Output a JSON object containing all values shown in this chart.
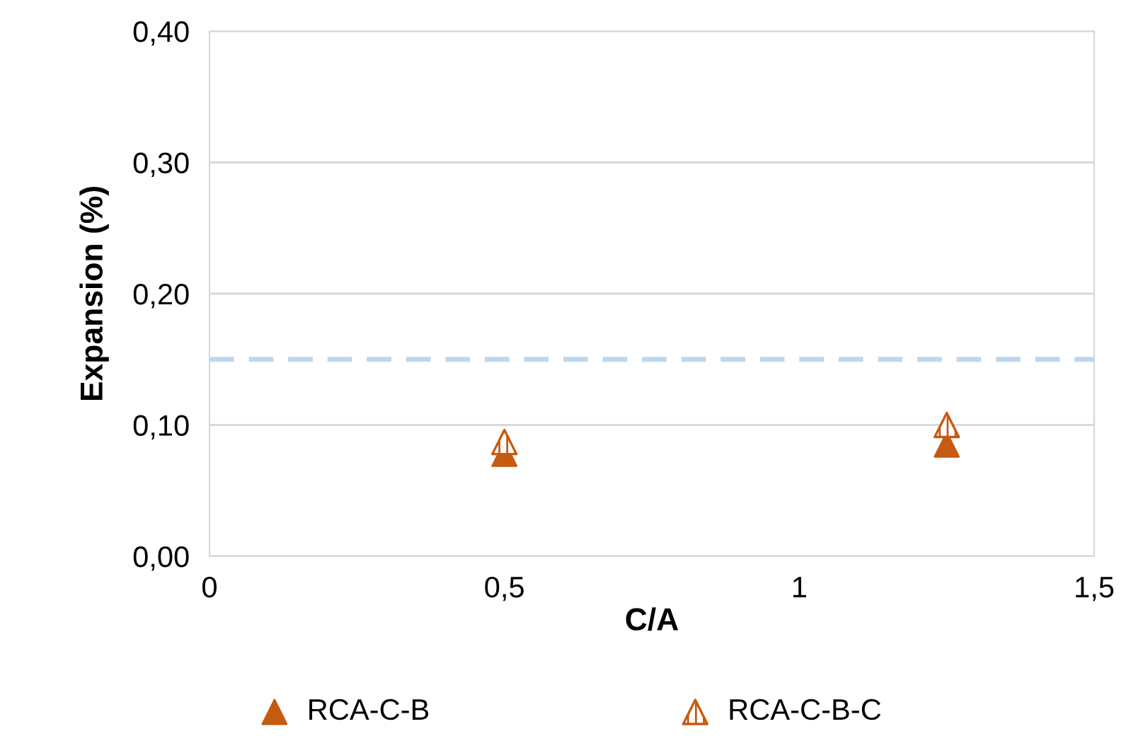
{
  "chart_data": {
    "type": "scatter",
    "xlabel": "C/A",
    "ylabel": "Expansion (%)",
    "x": [
      0.5,
      1.25
    ],
    "xlim": [
      0,
      1.5
    ],
    "xticks": [
      0,
      {
        "value": 0.5,
        "label": "0,5"
      },
      1,
      {
        "value": 1.5,
        "label": "1,5"
      }
    ],
    "ylim": [
      0,
      0.4
    ],
    "yticks": [
      {
        "value": 0,
        "label": "0,00"
      },
      {
        "value": 0.1,
        "label": "0,10"
      },
      {
        "value": 0.2,
        "label": "0,20"
      },
      {
        "value": 0.3,
        "label": "0,30"
      },
      {
        "value": 0.4,
        "label": "0,40"
      }
    ],
    "grid": "y",
    "legend": "bottom",
    "marker": "triangle",
    "ref_lines": [
      {
        "axis": "y",
        "value": 0.15,
        "color": "#bdd7ee",
        "line_style": "dashed"
      }
    ],
    "series": [
      {
        "name": "RCA-C-B",
        "color": "#c55a11",
        "values": [
          0.078,
          0.085
        ]
      },
      {
        "name": "RCA-C-B-C",
        "color": "#c55a11",
        "values": [
          0.087,
          0.1
        ]
      }
    ]
  }
}
